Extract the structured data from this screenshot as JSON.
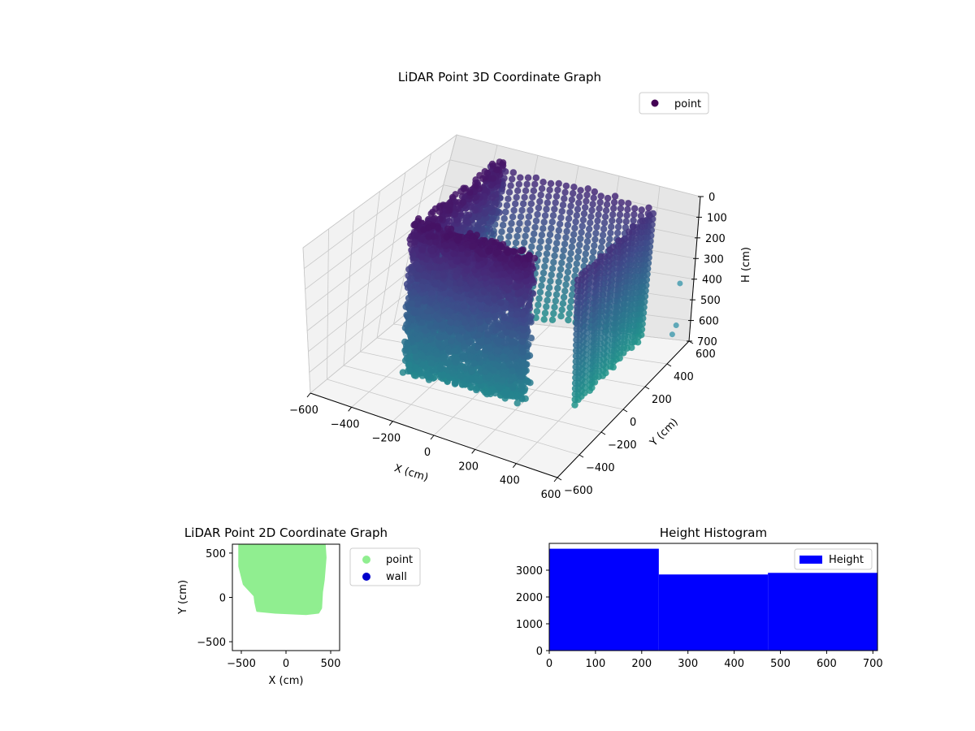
{
  "chart_data": [
    {
      "type": "scatter",
      "projection": "3d",
      "title": "LiDAR Point 3D Coordinate Graph",
      "xlabel": "X (cm)",
      "ylabel": "Y (cm)",
      "zlabel": "H (cm)",
      "xlim": [
        -600,
        600
      ],
      "ylim": [
        -600,
        600
      ],
      "zlim": [
        700,
        0
      ],
      "xticks": [
        "−600",
        "−400",
        "−200",
        "0",
        "200",
        "400",
        "600"
      ],
      "yticks": [
        "−600",
        "−400",
        "−200",
        "0",
        "200",
        "400",
        "600"
      ],
      "zticks": [
        "0",
        "100",
        "200",
        "300",
        "400",
        "500",
        "600",
        "700"
      ],
      "zaxis_inverted": true,
      "grid": true,
      "legend": {
        "placement": "upper-right",
        "entries": [
          {
            "label": "point",
            "color": "#440154"
          }
        ]
      },
      "colormap": "viridis",
      "series": [
        {
          "name": "point"
        }
      ],
      "outlier_points": [
        {
          "x": 560,
          "y": 420,
          "h": 330
        },
        {
          "x": 565,
          "y": 400,
          "h": 520
        },
        {
          "x": 555,
          "y": 390,
          "h": 560
        }
      ]
    },
    {
      "type": "scatter",
      "title": "LiDAR Point 2D Coordinate Graph",
      "xlabel": "X (cm)",
      "ylabel": "Y (cm)",
      "xlim": [
        -600,
        600
      ],
      "ylim": [
        -600,
        600
      ],
      "xticks": [
        "−500",
        "0",
        "500"
      ],
      "yticks": [
        "−500",
        "0",
        "500"
      ],
      "legend": {
        "placement": "outside-right",
        "entries": [
          {
            "label": "point",
            "color": "#90ee90"
          },
          {
            "label": "wall",
            "color": "#0000cc"
          }
        ]
      },
      "series": [
        {
          "name": "point",
          "color": "#90ee90",
          "outline": [
            [
              -520,
              600
            ],
            [
              430,
              600
            ],
            [
              440,
              450
            ],
            [
              420,
              200
            ],
            [
              400,
              60
            ],
            [
              390,
              -120
            ],
            [
              360,
              -170
            ],
            [
              230,
              -185
            ],
            [
              -120,
              -170
            ],
            [
              -320,
              -150
            ],
            [
              -340,
              -60
            ],
            [
              -350,
              20
            ],
            [
              -470,
              150
            ],
            [
              -520,
              350
            ]
          ]
        },
        {
          "name": "wall",
          "color": "#0000cc",
          "outline": []
        }
      ]
    },
    {
      "type": "histogram",
      "title": "Height Histogram",
      "xlim": [
        0,
        710
      ],
      "ylim": [
        0,
        4000
      ],
      "xticks": [
        0,
        100,
        200,
        300,
        400,
        500,
        600,
        700
      ],
      "yticks": [
        0,
        1000,
        2000,
        3000
      ],
      "legend": {
        "placement": "upper-right",
        "entries": [
          {
            "label": "Height",
            "color": "#0000ff"
          }
        ]
      },
      "series": [
        {
          "name": "Height",
          "color": "#0000ff"
        }
      ],
      "bins": [
        {
          "start": 0,
          "end": 237,
          "count": 3800
        },
        {
          "start": 237,
          "end": 473,
          "count": 2840
        },
        {
          "start": 473,
          "end": 710,
          "count": 2900
        }
      ]
    }
  ]
}
